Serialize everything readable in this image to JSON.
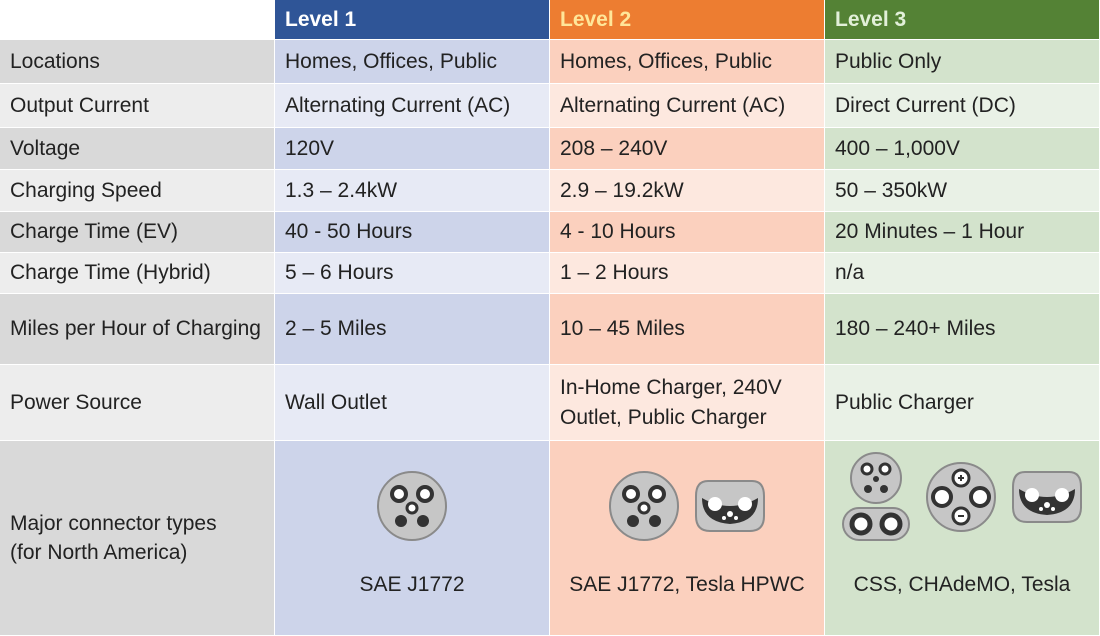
{
  "table": {
    "columns": [
      "Level 1",
      "Level 2",
      "Level 3"
    ],
    "rows": [
      {
        "label": "Locations",
        "cells": [
          "Homes, Offices, Public",
          "Homes, Offices, Public",
          "Public Only"
        ]
      },
      {
        "label": "Output Current",
        "cells": [
          "Alternating Current (AC)",
          "Alternating Current (AC)",
          "Direct Current  (DC)"
        ]
      },
      {
        "label": "Voltage",
        "cells": [
          "120V",
          "208 – 240V",
          "400 – 1,000V"
        ]
      },
      {
        "label": "Charging Speed",
        "cells": [
          "1.3 – 2.4kW",
          "2.9 – 19.2kW",
          "50 – 350kW"
        ]
      },
      {
        "label": "Charge Time (EV)",
        "cells": [
          "40 - 50 Hours",
          "4 - 10 Hours",
          "20 Minutes – 1 Hour"
        ]
      },
      {
        "label": "Charge Time (Hybrid)",
        "cells": [
          "5 – 6 Hours",
          "1 – 2 Hours",
          "n/a"
        ]
      },
      {
        "label": "Miles per Hour of Charging",
        "cells": [
          "2 – 5 Miles",
          "10 – 45 Miles",
          "180 – 240+ Miles"
        ]
      },
      {
        "label": "Power Source",
        "cells": [
          "Wall Outlet",
          "In-Home Charger, 240V Outlet, Public Charger",
          "Public Charger"
        ]
      },
      {
        "label": "Major connector types (for North America)",
        "cells": [
          "SAE J1772",
          "SAE J1772, Tesla HPWC",
          "CSS, CHAdeMO, Tesla"
        ]
      }
    ]
  }
}
